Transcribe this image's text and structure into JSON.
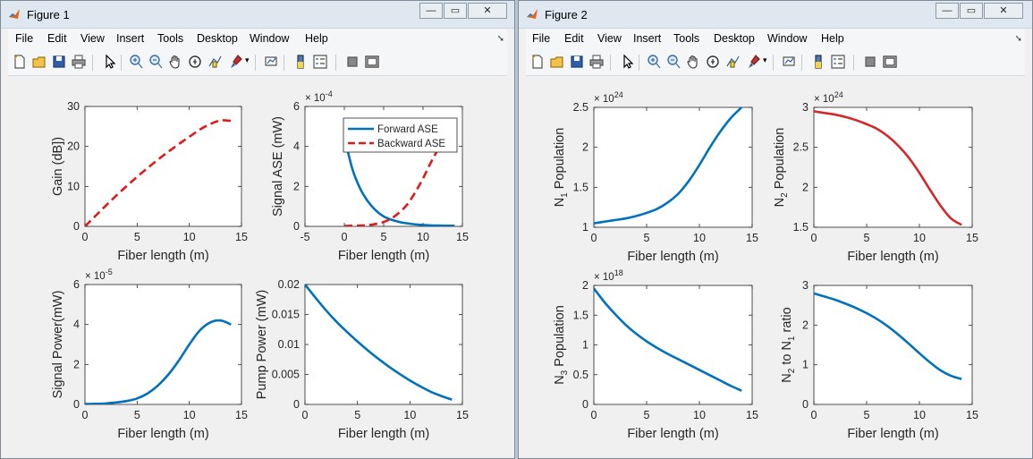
{
  "figures": [
    {
      "title": "Figure 1",
      "window_buttons": {
        "minimize": "—",
        "restore": "▭",
        "close": "✕"
      },
      "menu": [
        "File",
        "Edit",
        "View",
        "Insert",
        "Tools",
        "Desktop",
        "Window",
        "Help"
      ],
      "toolbar_icons": [
        "new-figure-icon",
        "open-file-icon",
        "save-icon",
        "print-icon",
        "pointer-icon",
        "zoom-in-icon",
        "zoom-out-icon",
        "pan-icon",
        "rotate-3d-icon",
        "data-cursor-icon",
        "brush-icon",
        "link-plot-icon",
        "colorbar-icon",
        "legend-icon",
        "hide-plot-tools-icon",
        "show-plot-tools-icon"
      ]
    },
    {
      "title": "Figure 2",
      "window_buttons": {
        "minimize": "—",
        "restore": "▭",
        "close": "✕"
      },
      "menu": [
        "File",
        "Edit",
        "View",
        "Insert",
        "Tools",
        "Desktop",
        "Window",
        "Help"
      ],
      "toolbar_icons": [
        "new-figure-icon",
        "open-file-icon",
        "save-icon",
        "print-icon",
        "pointer-icon",
        "zoom-in-icon",
        "zoom-out-icon",
        "pan-icon",
        "rotate-3d-icon",
        "data-cursor-icon",
        "brush-icon",
        "link-plot-icon",
        "colorbar-icon",
        "legend-icon",
        "hide-plot-tools-icon",
        "show-plot-tools-icon"
      ]
    }
  ],
  "colors": {
    "blue": "#0072bd",
    "red": "#d62728",
    "red_dash": "#e0191b"
  },
  "chart_data": [
    {
      "figure": "Figure 1",
      "type": "line",
      "xlabel": "Fiber length (m)",
      "ylabel": "Gain (dB])",
      "xlim": [
        0,
        15
      ],
      "ylim": [
        0,
        30
      ],
      "xticks": [
        0,
        5,
        10,
        15
      ],
      "yticks": [
        0,
        10,
        20,
        30
      ],
      "exponent": "",
      "series": [
        {
          "style": "dashed",
          "color": "#e0191b",
          "x": [
            0,
            1,
            2,
            3,
            4,
            5,
            6,
            7,
            8,
            9,
            10,
            11,
            12,
            13,
            14
          ],
          "y": [
            0,
            2.6,
            5.2,
            7.7,
            10.1,
            12.4,
            14.6,
            16.7,
            18.7,
            20.6,
            22.4,
            24.2,
            25.6,
            26.5,
            26.4
          ]
        }
      ]
    },
    {
      "figure": "Figure 1",
      "type": "line",
      "xlabel": "Fiber length (m)",
      "ylabel": "Signal ASE (mW)",
      "xlim": [
        -5,
        15
      ],
      "ylim": [
        0,
        6
      ],
      "xticks": [
        -5,
        0,
        5,
        10,
        15
      ],
      "yticks": [
        0,
        2,
        4,
        6
      ],
      "exponent": "× 10^-4",
      "legend": [
        "Forward ASE",
        "Backward ASE"
      ],
      "series": [
        {
          "name": "Forward ASE",
          "style": "solid",
          "color": "#0072bd",
          "x": [
            0,
            1,
            2,
            3,
            4,
            5,
            6,
            7,
            8,
            9,
            10,
            11,
            12,
            13,
            14
          ],
          "y": [
            4.5,
            2.9,
            1.9,
            1.25,
            0.8,
            0.5,
            0.33,
            0.22,
            0.15,
            0.1,
            0.07,
            0.05,
            0.04,
            0.03,
            0.03
          ]
        },
        {
          "name": "Backward ASE",
          "style": "dashed",
          "color": "#e0191b",
          "x": [
            0,
            1,
            2,
            3,
            4,
            5,
            6,
            7,
            8,
            9,
            10,
            11,
            12,
            13,
            14
          ],
          "y": [
            0.02,
            0.03,
            0.04,
            0.06,
            0.12,
            0.22,
            0.4,
            0.7,
            1.1,
            1.7,
            2.4,
            3.2,
            3.9,
            4.4,
            4.5
          ]
        }
      ]
    },
    {
      "figure": "Figure 1",
      "type": "line",
      "xlabel": "Fiber length (m)",
      "ylabel": "Signal Power(mW)",
      "xlim": [
        0,
        15
      ],
      "ylim": [
        0,
        6
      ],
      "xticks": [
        0,
        5,
        10,
        15
      ],
      "yticks": [
        0,
        2,
        4,
        6
      ],
      "exponent": "× 10^-5",
      "series": [
        {
          "style": "solid",
          "color": "#0072bd",
          "x": [
            0,
            1,
            2,
            3,
            4,
            5,
            6,
            7,
            8,
            9,
            10,
            11,
            12,
            13,
            14
          ],
          "y": [
            0.02,
            0.03,
            0.05,
            0.1,
            0.17,
            0.3,
            0.55,
            0.95,
            1.5,
            2.2,
            3.0,
            3.7,
            4.1,
            4.2,
            4.0
          ]
        }
      ]
    },
    {
      "figure": "Figure 1",
      "type": "line",
      "xlabel": "Fiber length (m)",
      "ylabel": "Pump Power (mW)",
      "xlim": [
        0,
        15
      ],
      "ylim": [
        0,
        0.02
      ],
      "xticks": [
        0,
        5,
        10,
        15
      ],
      "yticks": [
        0,
        0.005,
        0.01,
        0.015,
        0.02
      ],
      "exponent": "",
      "series": [
        {
          "style": "solid",
          "color": "#0072bd",
          "x": [
            0,
            1,
            2,
            3,
            4,
            5,
            6,
            7,
            8,
            9,
            10,
            11,
            12,
            13,
            14
          ],
          "y": [
            0.02,
            0.0178,
            0.0157,
            0.0138,
            0.0121,
            0.0105,
            0.009,
            0.0076,
            0.0063,
            0.0051,
            0.004,
            0.003,
            0.0021,
            0.0014,
            0.0008
          ]
        }
      ]
    },
    {
      "figure": "Figure 2",
      "type": "line",
      "xlabel": "Fiber length (m)",
      "ylabel": "N1 Population",
      "ylabel_parts": [
        "N",
        "1",
        " Population"
      ],
      "xlim": [
        0,
        15
      ],
      "ylim": [
        1,
        2.5
      ],
      "xticks": [
        0,
        5,
        10,
        15
      ],
      "yticks": [
        1,
        1.5,
        2,
        2.5
      ],
      "exponent": "× 10^24",
      "series": [
        {
          "style": "solid",
          "color": "#0072bd",
          "x": [
            0,
            1,
            2,
            3,
            4,
            5,
            6,
            7,
            8,
            9,
            10,
            11,
            12,
            13,
            14
          ],
          "y": [
            1.05,
            1.07,
            1.09,
            1.11,
            1.14,
            1.18,
            1.23,
            1.31,
            1.42,
            1.58,
            1.78,
            2.0,
            2.2,
            2.37,
            2.5
          ]
        }
      ]
    },
    {
      "figure": "Figure 2",
      "type": "line",
      "xlabel": "Fiber length (m)",
      "ylabel": "N2 Population",
      "ylabel_parts": [
        "N",
        "2",
        " Population"
      ],
      "xlim": [
        0,
        15
      ],
      "ylim": [
        1.5,
        3
      ],
      "xticks": [
        0,
        5,
        10,
        15
      ],
      "yticks": [
        1.5,
        2,
        2.5,
        3
      ],
      "exponent": "× 10^24",
      "series": [
        {
          "style": "solid",
          "color": "#d62728",
          "x": [
            0,
            1,
            2,
            3,
            4,
            5,
            6,
            7,
            8,
            9,
            10,
            11,
            12,
            13,
            14
          ],
          "y": [
            2.95,
            2.93,
            2.91,
            2.88,
            2.84,
            2.79,
            2.73,
            2.64,
            2.52,
            2.37,
            2.18,
            1.97,
            1.77,
            1.61,
            1.53
          ]
        }
      ]
    },
    {
      "figure": "Figure 2",
      "type": "line",
      "xlabel": "Fiber length (m)",
      "ylabel": "N3 Population",
      "ylabel_parts": [
        "N",
        "3",
        " Population"
      ],
      "xlim": [
        0,
        15
      ],
      "ylim": [
        0,
        2
      ],
      "xticks": [
        0,
        5,
        10,
        15
      ],
      "yticks": [
        0,
        0.5,
        1,
        1.5,
        2
      ],
      "exponent": "× 10^18",
      "series": [
        {
          "style": "solid",
          "color": "#0072bd",
          "x": [
            0,
            1,
            2,
            3,
            4,
            5,
            6,
            7,
            8,
            9,
            10,
            11,
            12,
            13,
            14
          ],
          "y": [
            1.95,
            1.72,
            1.52,
            1.34,
            1.19,
            1.06,
            0.95,
            0.85,
            0.76,
            0.67,
            0.58,
            0.49,
            0.4,
            0.31,
            0.23
          ]
        }
      ]
    },
    {
      "figure": "Figure 2",
      "type": "line",
      "xlabel": "Fiber length (m)",
      "ylabel": "N2 to N1 ratio",
      "ylabel_parts": [
        "N",
        "2",
        " to N",
        "1",
        " ratio"
      ],
      "xlim": [
        0,
        15
      ],
      "ylim": [
        0,
        3
      ],
      "xticks": [
        0,
        5,
        10,
        15
      ],
      "yticks": [
        0,
        1,
        2,
        3
      ],
      "exponent": "",
      "series": [
        {
          "style": "solid",
          "color": "#0072bd",
          "x": [
            0,
            1,
            2,
            3,
            4,
            5,
            6,
            7,
            8,
            9,
            10,
            11,
            12,
            13,
            14
          ],
          "y": [
            2.8,
            2.72,
            2.64,
            2.54,
            2.43,
            2.3,
            2.15,
            1.97,
            1.76,
            1.53,
            1.29,
            1.06,
            0.86,
            0.72,
            0.64
          ]
        }
      ]
    }
  ]
}
